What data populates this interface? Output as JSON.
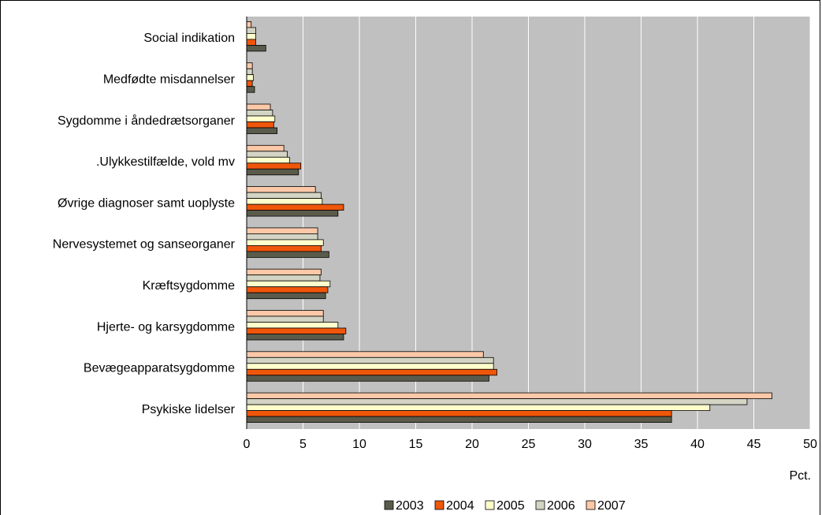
{
  "chart_data": {
    "type": "bar",
    "orientation": "horizontal",
    "categories": [
      "Social indikation",
      "Medfødte misdannelser",
      "Sygdomme i åndedrætsorganer",
      ".Ulykkestilfælde, vold mv",
      "Øvrige diagnoser samt uoplyste",
      "Nervesystemet og sanseorganer",
      "Kræftsygdomme",
      "Hjerte- og karsygdomme",
      "Bevægeapparatsygdomme",
      "Psykiske lidelser"
    ],
    "series": [
      {
        "name": "2003",
        "color": "#5b5b4c",
        "values": [
          1.7,
          0.7,
          2.7,
          4.6,
          8.1,
          7.3,
          7.0,
          8.6,
          21.5,
          37.7
        ]
      },
      {
        "name": "2004",
        "color": "#f0560a",
        "values": [
          0.8,
          0.5,
          2.4,
          4.8,
          8.6,
          6.6,
          7.2,
          8.8,
          22.2,
          37.7
        ]
      },
      {
        "name": "2005",
        "color": "#ffffcc",
        "values": [
          0.8,
          0.6,
          2.5,
          3.8,
          6.7,
          6.8,
          7.4,
          8.1,
          21.9,
          41.1
        ]
      },
      {
        "name": "2006",
        "color": "#d4d4c4",
        "values": [
          0.8,
          0.5,
          2.3,
          3.6,
          6.6,
          6.3,
          6.5,
          6.8,
          21.9,
          44.4
        ]
      },
      {
        "name": "2007",
        "color": "#fcc8a8",
        "values": [
          0.4,
          0.5,
          2.1,
          3.3,
          6.1,
          6.3,
          6.6,
          6.8,
          21.0,
          46.6
        ]
      }
    ],
    "xlim": [
      0,
      50
    ],
    "xticks": [
      "0",
      "5",
      "10",
      "15",
      "20",
      "25",
      "30",
      "35",
      "40",
      "45",
      "50"
    ],
    "xlabel": "Pct.",
    "ylabel": "",
    "title": "",
    "grid": "vertical",
    "legend_position": "bottom",
    "colors": {
      "plot_background": "#c0c0c0",
      "gridline": "#ffffff",
      "bar_outline": "#000000"
    }
  }
}
